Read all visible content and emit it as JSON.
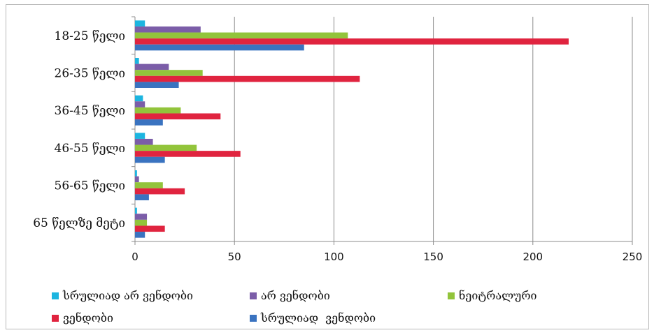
{
  "chart_data": {
    "type": "bar",
    "orientation": "horizontal",
    "categories": [
      "18-25 წელი",
      "26-35 წელი",
      "36-45 წელი",
      "46-55 წელი",
      "56-65 წელი",
      "65 წელზე მეტი"
    ],
    "series": [
      {
        "name": "სრულიად არ ვენდობი",
        "color": "#1cb5e0",
        "values": [
          5,
          2,
          4,
          5,
          1,
          1
        ]
      },
      {
        "name": "არ ვენდობი",
        "color": "#7b5da8",
        "values": [
          33,
          17,
          5,
          9,
          2,
          6
        ]
      },
      {
        "name": "ნეიტრალური",
        "color": "#92c43b",
        "values": [
          107,
          34,
          23,
          31,
          14,
          6
        ]
      },
      {
        "name": "ვენდობი",
        "color": "#e0243f",
        "values": [
          218,
          113,
          43,
          53,
          25,
          15
        ]
      },
      {
        "name": "სრულიად  ვენდობი",
        "color": "#3a73c0",
        "values": [
          85,
          22,
          14,
          15,
          7,
          5
        ]
      }
    ],
    "x_ticks": [
      "0",
      "50",
      "100",
      "150",
      "200",
      "250"
    ],
    "xlim": [
      0,
      250
    ],
    "grid": true,
    "legend_position": "bottom"
  }
}
